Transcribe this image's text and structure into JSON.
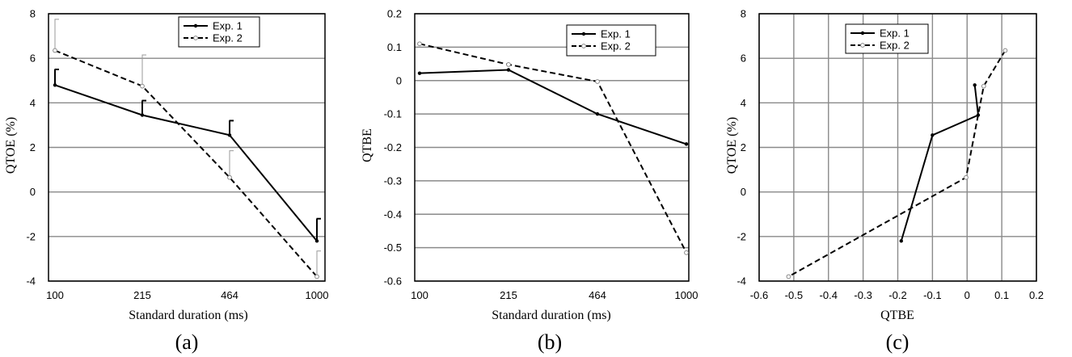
{
  "figure": {
    "panels": [
      {
        "id": "a",
        "type": "line",
        "panel_label": "(a)",
        "xlabel": "Standard duration (ms)",
        "ylabel": "QTOE (%)",
        "x_axis": "categorical",
        "categories": [
          "100",
          "215",
          "464",
          "1000"
        ],
        "ylim": [
          -4,
          8
        ],
        "yticks": [
          "-4",
          "-2",
          "0",
          "2",
          "4",
          "6",
          "8"
        ],
        "grid": "horizontal",
        "legend_position": "top-right",
        "series": [
          {
            "name": "Exp. 1",
            "line": "solid",
            "marker": "filled-dot",
            "color": "#000000",
            "values": [
              4.8,
              3.45,
              2.55,
              -2.2
            ],
            "error_upper": [
              0.7,
              0.65,
              0.65,
              1.0
            ]
          },
          {
            "name": "Exp. 2",
            "line": "dashed",
            "marker": "open-circle",
            "color": "#000000",
            "error_color": "#999999",
            "values": [
              6.35,
              4.75,
              0.65,
              -3.8
            ],
            "error_upper": [
              1.4,
              1.4,
              1.2,
              1.15
            ]
          }
        ]
      },
      {
        "id": "b",
        "type": "line",
        "panel_label": "(b)",
        "xlabel": "Standard duration (ms)",
        "ylabel": "QTBE",
        "x_axis": "categorical",
        "categories": [
          "100",
          "215",
          "464",
          "1000"
        ],
        "ylim": [
          -0.6,
          0.2
        ],
        "yticks": [
          "-0.6",
          "-0.5",
          "-0.4",
          "-0.3",
          "-0.2",
          "-0.1",
          "0",
          "0.1",
          "0.2"
        ],
        "grid": "horizontal",
        "legend_position": "top-right",
        "series": [
          {
            "name": "Exp. 1",
            "line": "solid",
            "marker": "filled-dot",
            "color": "#000000",
            "values": [
              0.022,
              0.032,
              -0.1,
              -0.19
            ]
          },
          {
            "name": "Exp. 2",
            "line": "dashed",
            "marker": "open-circle",
            "color": "#000000",
            "values": [
              0.11,
              0.048,
              -0.003,
              -0.515
            ]
          }
        ]
      },
      {
        "id": "c",
        "type": "line",
        "panel_label": "(c)",
        "xlabel": "QTBE",
        "ylabel": "QTOE (%)",
        "x_axis": "numeric",
        "xlim": [
          -0.6,
          0.2
        ],
        "xticks": [
          "-0.6",
          "-0.5",
          "-0.4",
          "-0.3",
          "-0.2",
          "-0.1",
          "0",
          "0.1",
          "0.2"
        ],
        "ylim": [
          -4,
          8
        ],
        "yticks": [
          "-4",
          "-2",
          "0",
          "2",
          "4",
          "6",
          "8"
        ],
        "grid": "both",
        "legend_position": "top-left",
        "series": [
          {
            "name": "Exp. 1",
            "line": "solid",
            "marker": "filled-dot",
            "color": "#000000",
            "x": [
              0.022,
              0.032,
              -0.1,
              -0.19
            ],
            "y": [
              4.8,
              3.45,
              2.55,
              -2.2
            ]
          },
          {
            "name": "Exp. 2",
            "line": "dashed",
            "marker": "open-circle",
            "color": "#000000",
            "x": [
              0.11,
              0.048,
              -0.003,
              -0.515
            ],
            "y": [
              6.35,
              4.75,
              0.65,
              -3.8
            ]
          }
        ]
      }
    ]
  }
}
